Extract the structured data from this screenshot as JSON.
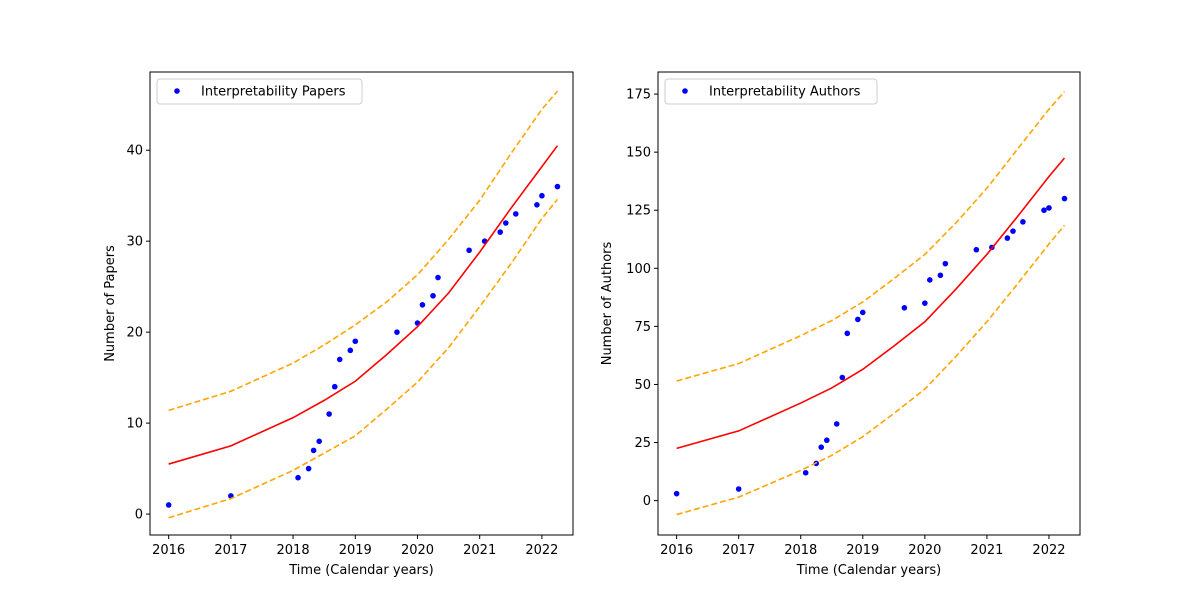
{
  "chart_data": [
    {
      "type": "scatter",
      "xlabel": "Time (Calendar years)",
      "ylabel": "Number of Papers",
      "xlim": [
        2015.7,
        2022.5
      ],
      "ylim": [
        -2.3,
        48.6
      ],
      "xticks": [
        2016,
        2017,
        2018,
        2019,
        2020,
        2021,
        2022
      ],
      "yticks": [
        0,
        10,
        20,
        30,
        40
      ],
      "legend": "top-left",
      "grid": false,
      "series": [
        {
          "name": "Interpretability Papers",
          "kind": "scatter",
          "color": "#0000ff",
          "points": [
            [
              2016.0,
              1
            ],
            [
              2017.0,
              2
            ],
            [
              2018.08,
              4
            ],
            [
              2018.25,
              5
            ],
            [
              2018.33,
              7
            ],
            [
              2018.42,
              8
            ],
            [
              2018.58,
              11
            ],
            [
              2018.67,
              14
            ],
            [
              2018.75,
              17
            ],
            [
              2018.92,
              18
            ],
            [
              2019.0,
              19
            ],
            [
              2019.67,
              20
            ],
            [
              2020.0,
              21
            ],
            [
              2020.08,
              23
            ],
            [
              2020.25,
              24
            ],
            [
              2020.33,
              26
            ],
            [
              2020.83,
              29
            ],
            [
              2021.08,
              30
            ],
            [
              2021.33,
              31
            ],
            [
              2021.42,
              32
            ],
            [
              2021.58,
              33
            ],
            [
              2021.92,
              34
            ],
            [
              2022.0,
              35
            ],
            [
              2022.25,
              36
            ]
          ]
        },
        {
          "kind": "line",
          "color": "#ff0000",
          "dash": "solid",
          "x": [
            2016,
            2017,
            2018,
            2018.5,
            2019,
            2019.5,
            2020,
            2020.5,
            2021,
            2021.5,
            2022,
            2022.25
          ],
          "y": [
            5.5,
            7.5,
            10.6,
            12.5,
            14.6,
            17.5,
            20.6,
            24.3,
            28.8,
            33.6,
            38.2,
            40.5
          ]
        },
        {
          "kind": "line",
          "color": "#ffa500",
          "dash": "dashed",
          "x": [
            2016,
            2017,
            2018,
            2018.5,
            2019,
            2019.5,
            2020,
            2020.5,
            2021,
            2021.5,
            2022,
            2022.25
          ],
          "y": [
            11.4,
            13.5,
            16.6,
            18.6,
            20.8,
            23.3,
            26.3,
            30.2,
            34.5,
            39.6,
            44.5,
            46.5
          ]
        },
        {
          "kind": "line",
          "color": "#ffa500",
          "dash": "dashed",
          "x": [
            2016,
            2017,
            2018,
            2018.5,
            2019,
            2019.5,
            2020,
            2020.5,
            2021,
            2021.5,
            2022,
            2022.25
          ],
          "y": [
            -0.4,
            1.7,
            4.8,
            6.7,
            8.6,
            11.5,
            14.5,
            18.3,
            22.8,
            27.5,
            32.5,
            34.6
          ]
        }
      ]
    },
    {
      "type": "scatter",
      "xlabel": "Time (Calendar years)",
      "ylabel": "Number of Authors",
      "xlim": [
        2015.7,
        2022.5
      ],
      "ylim": [
        -14.8,
        184.5
      ],
      "xticks": [
        2016,
        2017,
        2018,
        2019,
        2020,
        2021,
        2022
      ],
      "yticks": [
        0,
        25,
        50,
        75,
        100,
        125,
        150,
        175
      ],
      "legend": "top-left",
      "grid": false,
      "series": [
        {
          "name": "Interpretability Authors",
          "kind": "scatter",
          "color": "#0000ff",
          "points": [
            [
              2016.0,
              3
            ],
            [
              2017.0,
              5
            ],
            [
              2018.08,
              12
            ],
            [
              2018.25,
              16
            ],
            [
              2018.33,
              23
            ],
            [
              2018.42,
              26
            ],
            [
              2018.58,
              33
            ],
            [
              2018.67,
              53
            ],
            [
              2018.75,
              72
            ],
            [
              2018.92,
              78
            ],
            [
              2019.0,
              81
            ],
            [
              2019.67,
              83
            ],
            [
              2020.0,
              85
            ],
            [
              2020.08,
              95
            ],
            [
              2020.25,
              97
            ],
            [
              2020.33,
              102
            ],
            [
              2020.83,
              108
            ],
            [
              2021.08,
              109
            ],
            [
              2021.33,
              113
            ],
            [
              2021.42,
              116
            ],
            [
              2021.58,
              120
            ],
            [
              2021.92,
              125
            ],
            [
              2022.0,
              126
            ],
            [
              2022.25,
              130
            ]
          ]
        },
        {
          "kind": "line",
          "color": "#ff0000",
          "dash": "solid",
          "x": [
            2016,
            2017,
            2018,
            2018.5,
            2019,
            2019.5,
            2020,
            2020.5,
            2021,
            2021.5,
            2022,
            2022.25
          ],
          "y": [
            22.5,
            30,
            42,
            48.5,
            56.5,
            66.5,
            77,
            91,
            106,
            122.5,
            139.5,
            147.5
          ]
        },
        {
          "kind": "line",
          "color": "#ffa500",
          "dash": "dashed",
          "x": [
            2016,
            2017,
            2018,
            2018.5,
            2019,
            2019.5,
            2020,
            2020.5,
            2021,
            2021.5,
            2022,
            2022.25
          ],
          "y": [
            51.5,
            59,
            71,
            77.5,
            85.5,
            95.5,
            106,
            119.5,
            134.5,
            151.5,
            168.5,
            176
          ]
        },
        {
          "kind": "line",
          "color": "#ffa500",
          "dash": "dashed",
          "x": [
            2016,
            2017,
            2018,
            2018.5,
            2019,
            2019.5,
            2020,
            2020.5,
            2021,
            2021.5,
            2022,
            2022.25
          ],
          "y": [
            -6,
            1.5,
            13,
            19.5,
            27.5,
            37.5,
            48,
            62,
            77,
            93.5,
            110.5,
            118.5
          ]
        }
      ]
    }
  ]
}
